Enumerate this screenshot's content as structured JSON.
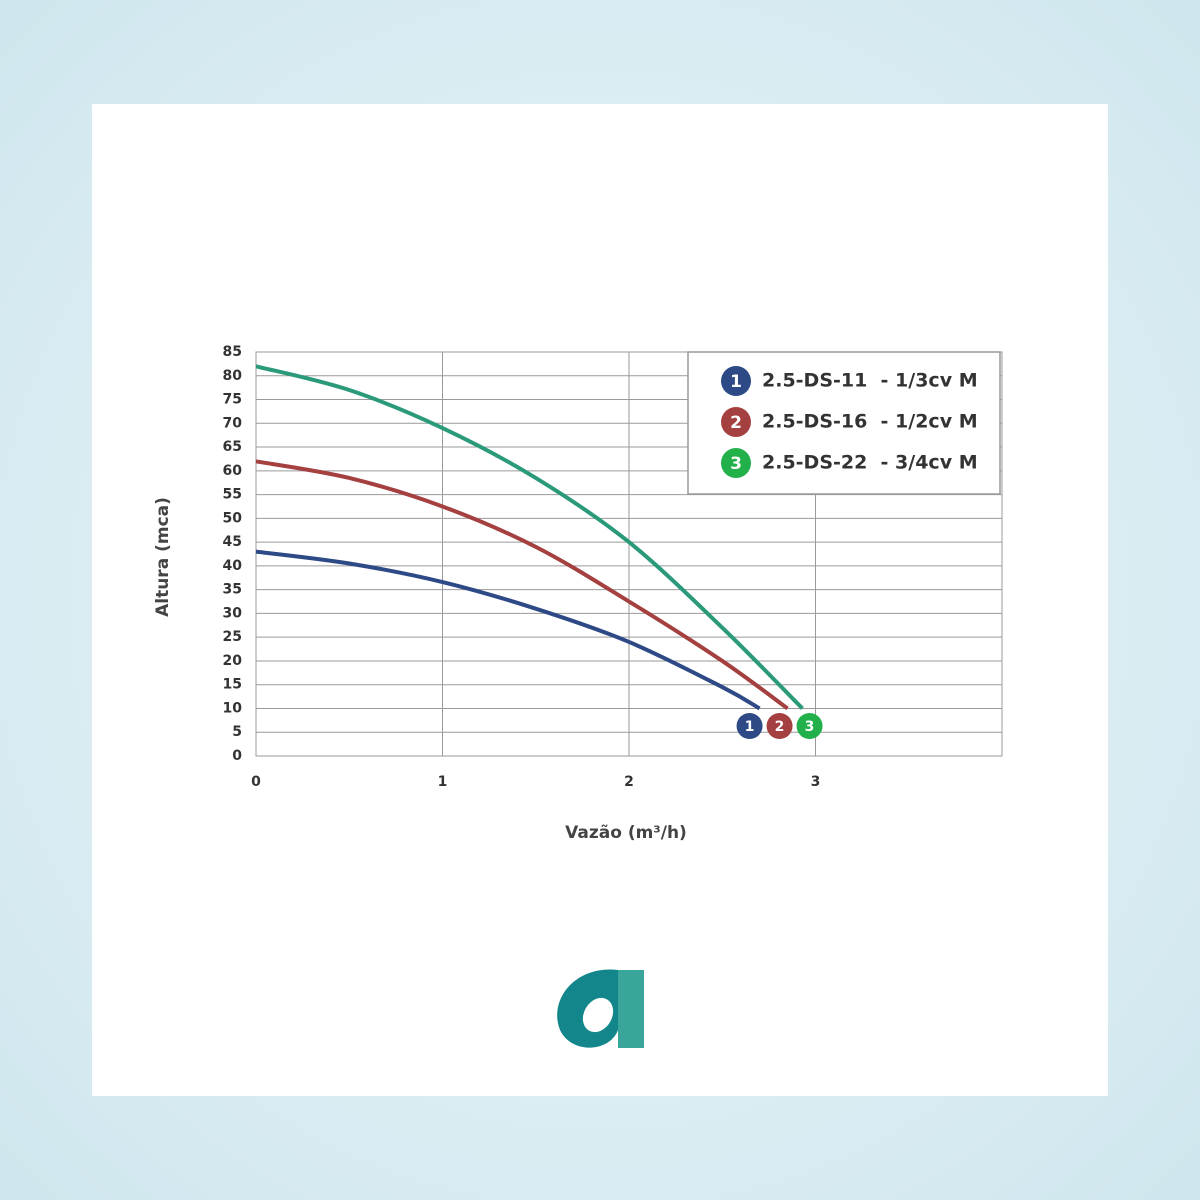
{
  "chart_data": {
    "type": "line",
    "x_label": "Vazão (m³/h)",
    "y_label": "Altura (mca)",
    "xlim": [
      0,
      4
    ],
    "xticks": [
      0,
      1,
      2,
      3
    ],
    "ylim": [
      0,
      85
    ],
    "yticks": [
      0,
      5,
      10,
      15,
      20,
      25,
      30,
      35,
      40,
      45,
      50,
      55,
      60,
      65,
      70,
      75,
      80,
      85
    ],
    "grid": true,
    "legend": "upper right",
    "series": [
      {
        "name": "2.5-DS-11  - 1/3cv M",
        "marker": "1",
        "color": "#2e4a86",
        "marker_color": "#2e4a86",
        "x": [
          0,
          0.5,
          1,
          1.5,
          2,
          2.5,
          2.7
        ],
        "values": [
          43,
          40.5,
          36.6,
          31,
          24,
          14.5,
          10
        ]
      },
      {
        "name": "2.5-DS-16  - 1/2cv M",
        "marker": "2",
        "color": "#a4403f",
        "marker_color": "#a4403f",
        "x": [
          0,
          0.5,
          1,
          1.5,
          2,
          2.5,
          2.85
        ],
        "values": [
          62,
          58.5,
          52.5,
          44,
          32.5,
          20,
          10
        ]
      },
      {
        "name": "2.5-DS-22  - 3/4cv M",
        "marker": "3",
        "color": "#2a9a7a",
        "marker_color": "#22b04b",
        "x": [
          0,
          0.5,
          1,
          1.5,
          2,
          2.5,
          2.93
        ],
        "values": [
          82,
          77,
          69,
          58.5,
          45,
          27,
          10
        ]
      }
    ]
  }
}
